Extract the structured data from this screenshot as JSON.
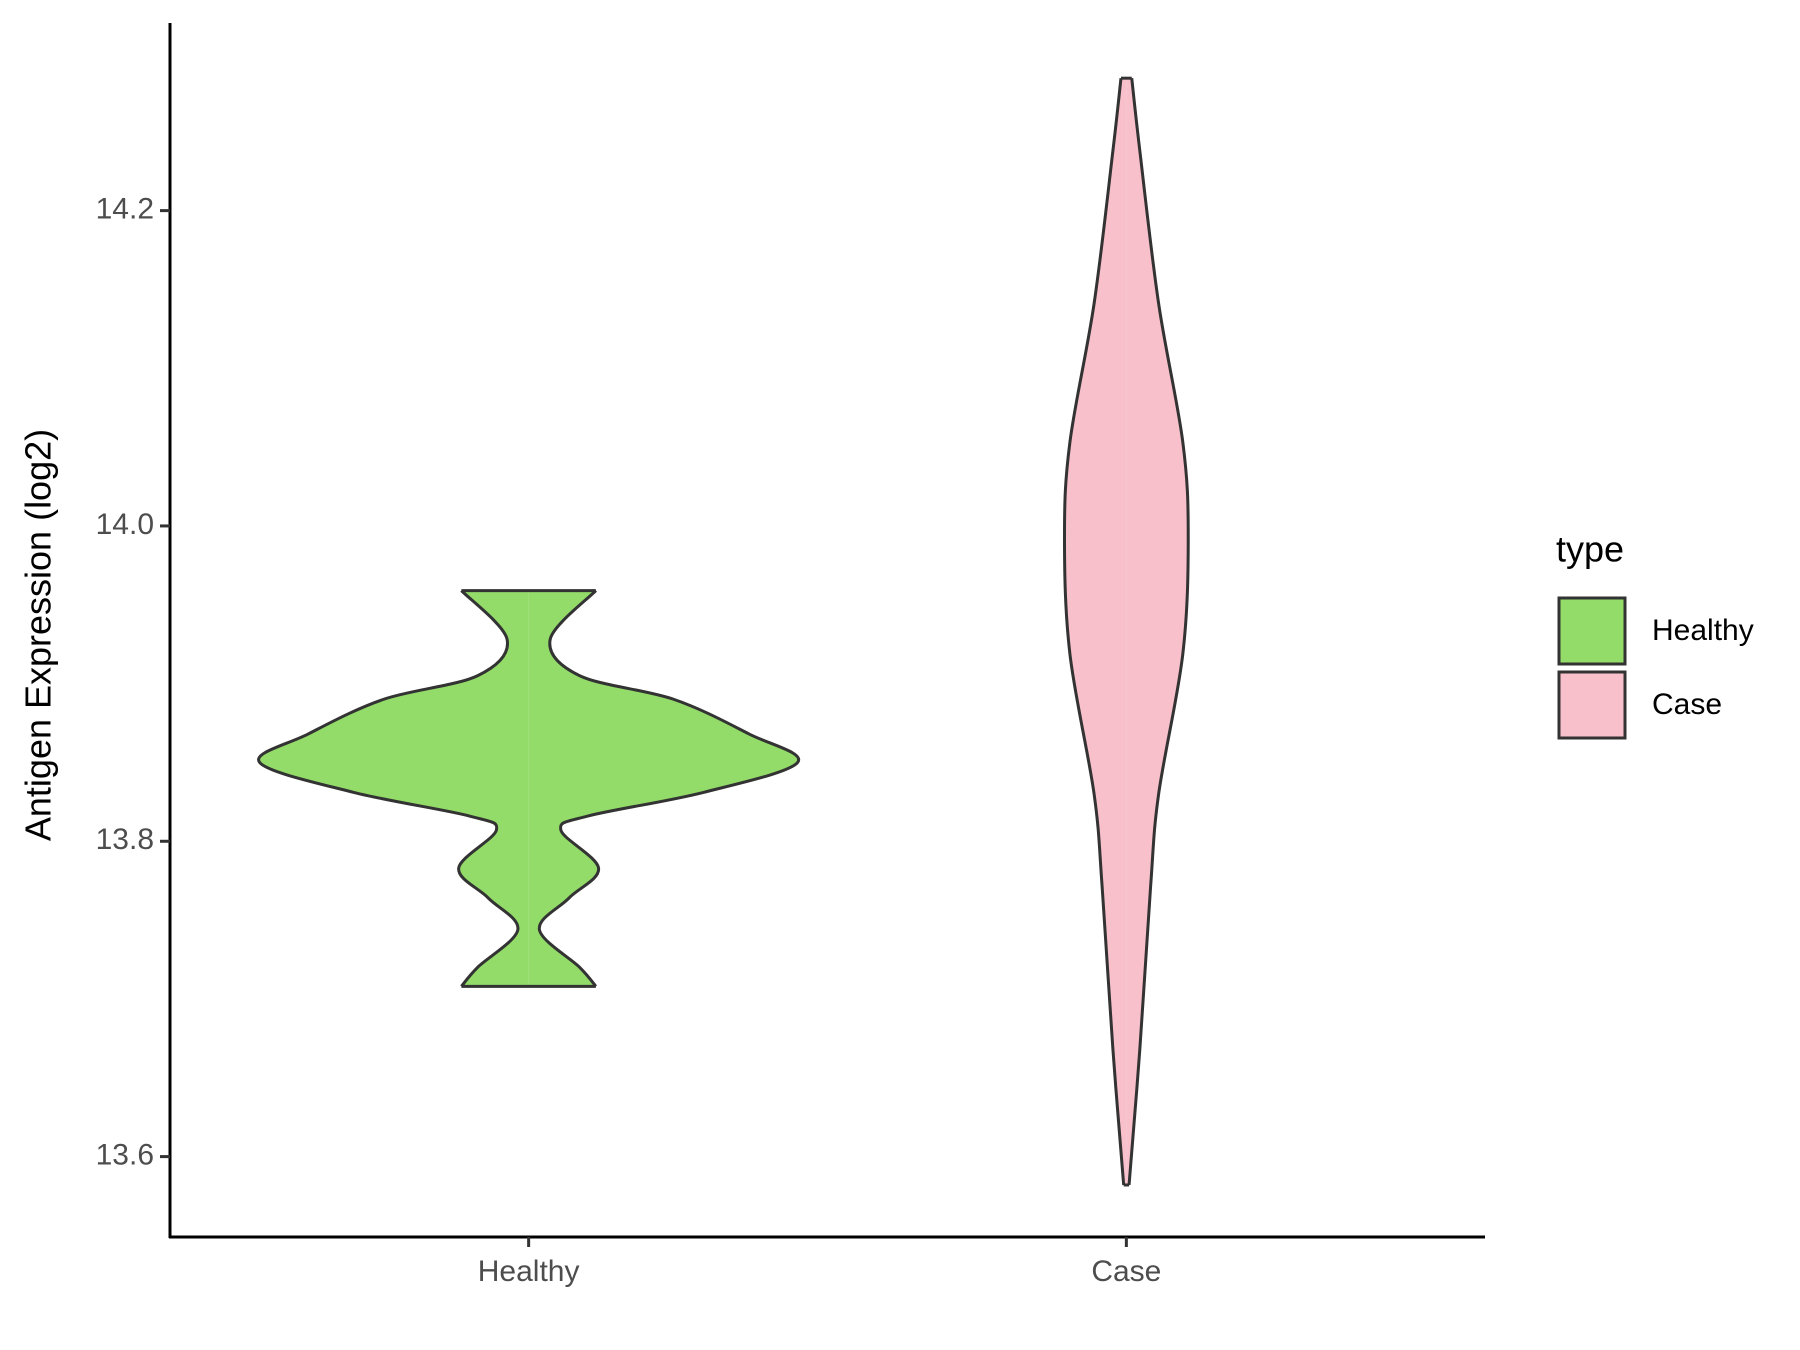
{
  "chart_data": {
    "type": "violin",
    "y_label": "Antigen Expression (log2)",
    "categories": [
      "Healthy",
      "Case"
    ],
    "ylim": [
      13.549,
      14.319
    ],
    "yticks": [
      13.6,
      13.8,
      {
        "value": 14,
        "label": "14.0"
      },
      14.2
    ],
    "legend_title": "type",
    "legend_position": "right",
    "series": [
      {
        "name": "Healthy",
        "color": "#93dc6a",
        "y": [
          13.959,
          13.928,
          13.905,
          13.89,
          13.868,
          13.85,
          13.831,
          13.816,
          13.807,
          13.783,
          13.764,
          13.744,
          13.72,
          13.708
        ],
        "width": [
          0.25,
          0.08,
          0.19,
          0.54,
          0.82,
          1.0,
          0.65,
          0.22,
          0.12,
          0.26,
          0.15,
          0.04,
          0.19,
          0.25
        ]
      },
      {
        "name": "Case",
        "color": "#f8c0cb",
        "y": [
          14.284,
          14.238,
          14.141,
          14.053,
          13.993,
          13.919,
          13.83,
          13.771,
          13.668,
          13.582
        ],
        "width": [
          0.02,
          0.05,
          0.12,
          0.21,
          0.23,
          0.21,
          0.12,
          0.09,
          0.05,
          0.01
        ]
      }
    ]
  }
}
